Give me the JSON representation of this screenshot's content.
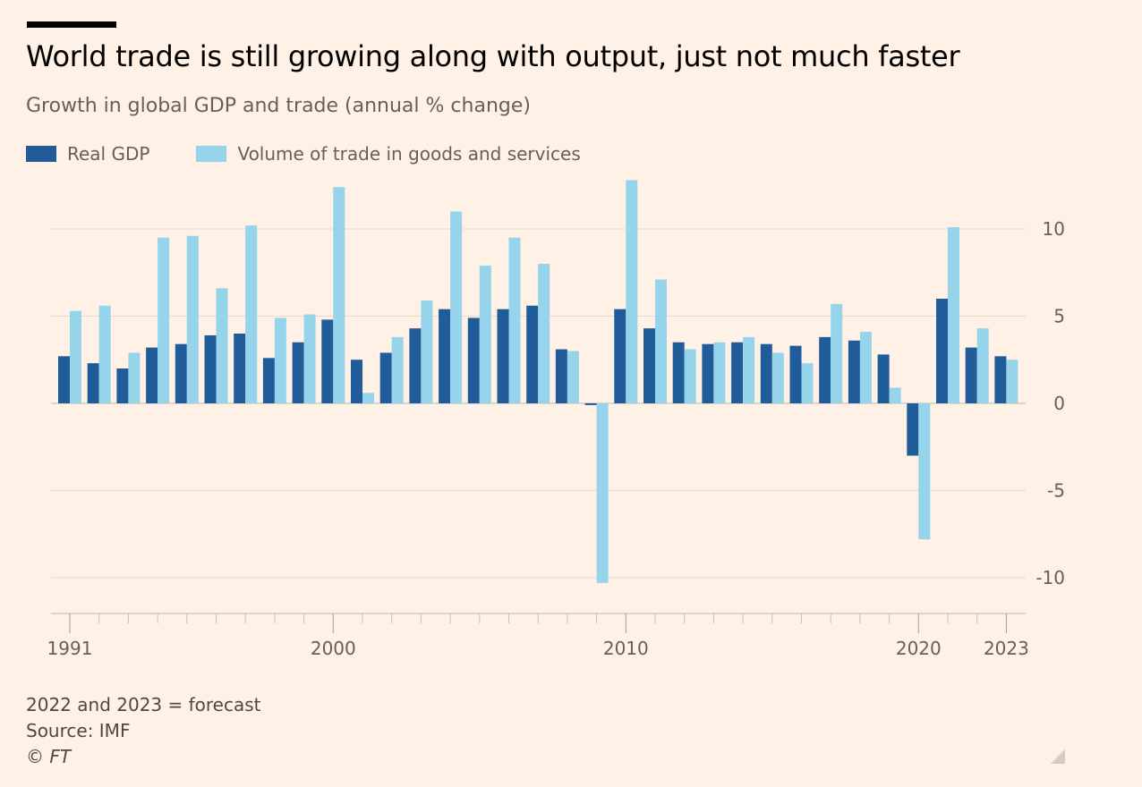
{
  "header": {
    "title": "World trade is still growing along with output, just not much faster",
    "subtitle": "Growth in global GDP and trade (annual % change)"
  },
  "legend": {
    "items": [
      {
        "label": "Real GDP",
        "color": "#1f5c99"
      },
      {
        "label": "Volume of trade in goods and services",
        "color": "#96d4eb"
      }
    ]
  },
  "footer": {
    "note": "2022 and 2023 = forecast",
    "source": "Source: IMF",
    "copyright": "© FT"
  },
  "chart_data": {
    "type": "bar",
    "categories": [
      1991,
      1992,
      1993,
      1994,
      1995,
      1996,
      1997,
      1998,
      1999,
      2000,
      2001,
      2002,
      2003,
      2004,
      2005,
      2006,
      2007,
      2008,
      2009,
      2010,
      2011,
      2012,
      2013,
      2014,
      2015,
      2016,
      2017,
      2018,
      2019,
      2020,
      2021,
      2022,
      2023
    ],
    "series": [
      {
        "name": "Real GDP",
        "color": "#1f5c99",
        "values": [
          2.7,
          2.3,
          2.0,
          3.2,
          3.4,
          3.9,
          4.0,
          2.6,
          3.5,
          4.8,
          2.5,
          2.9,
          4.3,
          5.4,
          4.9,
          5.4,
          5.6,
          3.1,
          -0.1,
          5.4,
          4.3,
          3.5,
          3.4,
          3.5,
          3.4,
          3.3,
          3.8,
          3.6,
          2.8,
          -3.0,
          6.0,
          3.2,
          2.7
        ]
      },
      {
        "name": "Volume of trade in goods and services",
        "color": "#96d4eb",
        "values": [
          5.3,
          5.6,
          2.9,
          9.5,
          9.6,
          6.6,
          10.2,
          4.9,
          5.1,
          12.4,
          0.6,
          3.8,
          5.9,
          11.0,
          7.9,
          9.5,
          8.0,
          3.0,
          -10.3,
          12.8,
          7.1,
          3.1,
          3.5,
          3.8,
          2.9,
          2.3,
          5.7,
          4.1,
          0.9,
          -7.8,
          10.1,
          4.3,
          2.5
        ]
      }
    ],
    "y_ticks": [
      10,
      5,
      0,
      -5,
      -10
    ],
    "y_tick_labels": [
      "10",
      "5",
      "0",
      "-5",
      "-10"
    ],
    "x_tick_labels": [
      {
        "year": 1991,
        "label": "1991"
      },
      {
        "year": 2000,
        "label": "2000"
      },
      {
        "year": 2010,
        "label": "2010"
      },
      {
        "year": 2020,
        "label": "2020"
      },
      {
        "year": 2023,
        "label": "2023"
      }
    ],
    "ylim": [
      -12.2,
      13.2
    ],
    "grid": true,
    "y_axis_position": "right",
    "legend_position": "top-left"
  }
}
